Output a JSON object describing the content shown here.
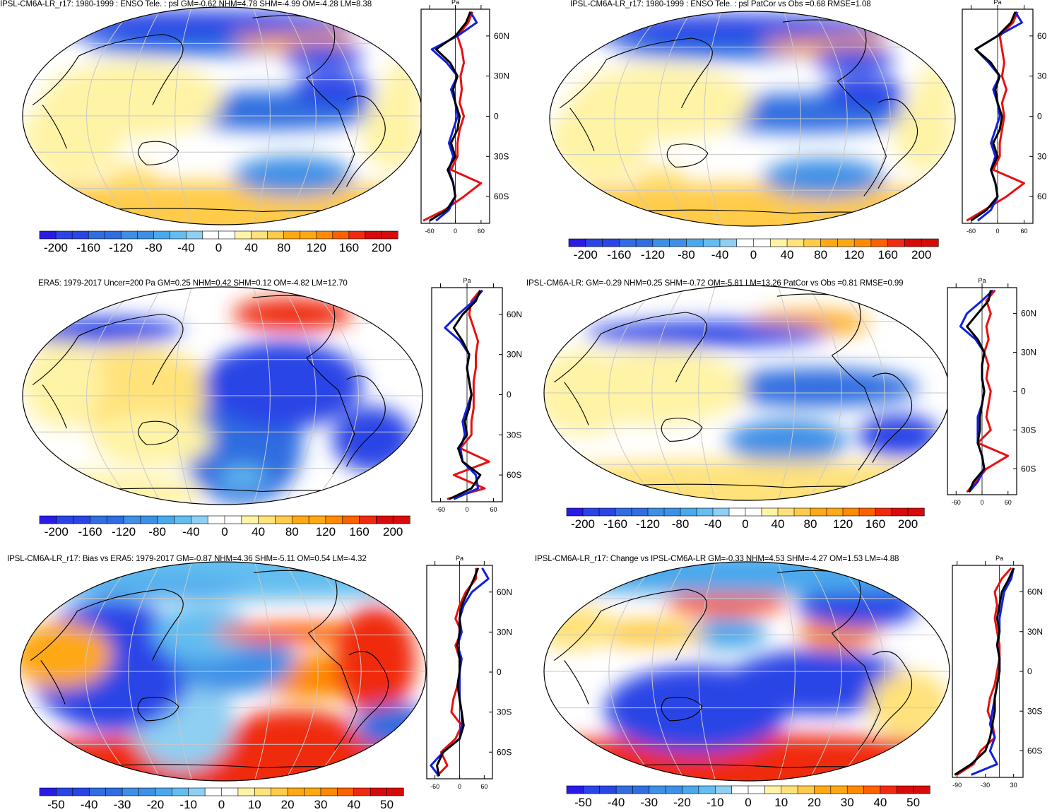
{
  "palette": {
    "neg": [
      "#2a1ae8",
      "#2a45e6",
      "#2f6de0",
      "#3e8fe6",
      "#4aa8ec",
      "#63bdf0",
      "#8ecff2"
    ],
    "zero": "#ffffff",
    "pos": [
      "#fff3a6",
      "#ffe27a",
      "#ffcb4a",
      "#ffa814",
      "#ff8a00",
      "#ff6000",
      "#f02a10",
      "#d80a0a"
    ],
    "land": "#000000",
    "grid": "#c8c8c8",
    "line_blue": "#1020e0",
    "line_red": "#e81010",
    "line_black": "#000000"
  },
  "chart_data": [
    {
      "id": "p1",
      "type": "heatmap",
      "title": "IPSL-CM6A-LR_r17: 1980-1999 : ENSO Tele. : psl GM=-0.62 NHM=4.78 SHM=-4.99 OM=-4.28 LM=8.38",
      "field": "ENSO teleconnection, sea level pressure",
      "colorbar_ticks": [
        "-200",
        "-160",
        "-120",
        "-80",
        "-40",
        "0",
        "40",
        "80",
        "120",
        "160",
        "200"
      ],
      "zonal_mean": {
        "unit": "Pa",
        "xticks": [
          "-60",
          "0",
          "60"
        ],
        "xrange": [
          -80,
          80
        ],
        "lat_labels": [
          "60N",
          "30N",
          "0",
          "30S",
          "60S"
        ],
        "lat": [
          78,
          70,
          60,
          50,
          40,
          30,
          20,
          10,
          0,
          -10,
          -20,
          -30,
          -40,
          -50,
          -60,
          -70,
          -78
        ],
        "model_black": [
          35,
          25,
          0,
          -45,
          -12,
          5,
          -5,
          0,
          10,
          5,
          -10,
          0,
          -18,
          -5,
          0,
          -20,
          -60
        ],
        "red": [
          40,
          30,
          5,
          15,
          20,
          12,
          15,
          10,
          20,
          10,
          5,
          5,
          -10,
          60,
          20,
          -25,
          -75
        ],
        "blue": [
          35,
          50,
          5,
          -55,
          -20,
          5,
          -10,
          0,
          5,
          -5,
          -15,
          -5,
          -15,
          -5,
          0,
          -15,
          -45
        ]
      }
    },
    {
      "id": "p2",
      "type": "heatmap",
      "title": "IPSL-CM6A-LR_r17: 1980-1999 : ENSO Tele. : psl PatCor vs Obs =0.68 RMSE=1.08",
      "field": "ENSO teleconnection, sea level pressure",
      "colorbar_ticks": [
        "-200",
        "-160",
        "-120",
        "-80",
        "-40",
        "0",
        "40",
        "80",
        "120",
        "160",
        "200"
      ],
      "zonal_mean": {
        "unit": "Pa",
        "xticks": [
          "-60",
          "0",
          "60"
        ],
        "xrange": [
          -80,
          80
        ],
        "lat_labels": [
          "60",
          "30",
          "0",
          "30",
          "60"
        ],
        "lat": [
          78,
          70,
          60,
          50,
          40,
          30,
          20,
          10,
          0,
          -10,
          -20,
          -30,
          -40,
          -50,
          -60,
          -70,
          -78
        ],
        "model_black": [
          40,
          30,
          0,
          -50,
          -15,
          5,
          -5,
          0,
          10,
          5,
          -10,
          0,
          -15,
          -5,
          0,
          -25,
          -60
        ],
        "red": [
          45,
          35,
          5,
          10,
          15,
          10,
          20,
          10,
          15,
          10,
          5,
          5,
          -10,
          60,
          20,
          -30,
          -70
        ],
        "blue": [
          40,
          55,
          0,
          -50,
          -20,
          5,
          -10,
          0,
          5,
          -5,
          -15,
          -5,
          -15,
          -5,
          0,
          -15,
          -45
        ]
      }
    },
    {
      "id": "p3",
      "type": "heatmap",
      "title": "ERA5: 1979-2017 Uncer=200 Pa GM=0.25 NHM=0.42 SHM=0.12 OM=-4.82 LM=12.70",
      "field": "ENSO teleconnection, sea level pressure (observations)",
      "colorbar_ticks": [
        "-200",
        "-160",
        "-120",
        "-80",
        "-40",
        "0",
        "40",
        "80",
        "120",
        "160",
        "200"
      ],
      "zonal_mean": {
        "unit": "Pa",
        "xticks": [
          "-60",
          "0",
          "60"
        ],
        "xrange": [
          -80,
          80
        ],
        "lat_labels": [
          "60N",
          "30N",
          "0",
          "30S",
          "60S"
        ],
        "lat": [
          78,
          70,
          60,
          50,
          40,
          30,
          20,
          10,
          0,
          -10,
          -20,
          -30,
          -40,
          -50,
          -60,
          -70,
          -78
        ],
        "model_black": [
          30,
          20,
          -10,
          -30,
          -10,
          5,
          0,
          5,
          10,
          5,
          -5,
          0,
          -20,
          -10,
          30,
          10,
          -40
        ],
        "red": [
          30,
          10,
          5,
          15,
          25,
          20,
          20,
          15,
          15,
          15,
          10,
          10,
          -15,
          50,
          -30,
          40,
          -45
        ],
        "blue": [
          35,
          15,
          -20,
          -50,
          -15,
          5,
          0,
          5,
          10,
          0,
          -10,
          -5,
          -15,
          -10,
          20,
          25,
          -30
        ]
      }
    },
    {
      "id": "p4",
      "type": "heatmap",
      "title": "IPSL-CM6A-LR: GM=-0.29 NHM=0.25 SHM=-0.72 OM=-5.81 LM=13.26 PatCor vs Obs =0.81 RMSE=0.99",
      "field": "ENSO teleconnection, sea level pressure (ensemble)",
      "colorbar_ticks": [
        "-200",
        "-160",
        "-120",
        "-80",
        "-40",
        "0",
        "40",
        "80",
        "120",
        "160",
        "200"
      ],
      "zonal_mean": {
        "unit": "Pa",
        "xticks": [
          "-60",
          "0",
          "60"
        ],
        "xrange": [
          -80,
          80
        ],
        "lat_labels": [
          "60N",
          "30N",
          "0",
          "30S",
          "60S"
        ],
        "lat": [
          78,
          70,
          60,
          50,
          40,
          30,
          20,
          10,
          0,
          -10,
          -20,
          -30,
          -40,
          -50,
          -60,
          -70,
          -78
        ],
        "model_black": [
          20,
          15,
          -10,
          -35,
          -10,
          5,
          0,
          0,
          5,
          0,
          -5,
          -5,
          -10,
          0,
          5,
          -20,
          -30
        ],
        "red": [
          30,
          10,
          20,
          10,
          15,
          5,
          15,
          10,
          20,
          15,
          10,
          20,
          -10,
          60,
          10,
          -15,
          -35
        ],
        "blue": [
          25,
          0,
          -35,
          -50,
          -15,
          5,
          0,
          0,
          5,
          0,
          -10,
          -10,
          -10,
          0,
          5,
          -10,
          -30
        ]
      }
    },
    {
      "id": "p5",
      "type": "heatmap",
      "title": "IPSL-CM6A-LR_r17: Bias vs ERA5: 1979-2017 GM=-0.87 NHM=4.36 SHM=-5.11 OM=0.54 LM=-4.32",
      "field": "Bias vs ERA5, sea level pressure",
      "colorbar_ticks": [
        "-50",
        "-40",
        "-30",
        "-20",
        "-10",
        "0",
        "10",
        "20",
        "30",
        "40",
        "50"
      ],
      "zonal_mean": {
        "unit": "Pa",
        "xticks": [
          "-60",
          "0",
          "60"
        ],
        "xrange": [
          -80,
          80
        ],
        "lat_labels": [
          "60N",
          "30N",
          "0",
          "30S",
          "60S"
        ],
        "lat": [
          78,
          70,
          60,
          50,
          40,
          30,
          20,
          10,
          0,
          -10,
          -20,
          -30,
          -40,
          -50,
          -60,
          -70,
          -78
        ],
        "model_black": [
          45,
          35,
          20,
          5,
          0,
          0,
          -5,
          0,
          0,
          -5,
          0,
          5,
          10,
          0,
          -40,
          -55,
          -50
        ],
        "red": [
          40,
          40,
          15,
          0,
          -10,
          5,
          -10,
          0,
          0,
          -5,
          -15,
          -20,
          5,
          -10,
          -45,
          -30,
          -55
        ],
        "blue": [
          55,
          70,
          30,
          10,
          0,
          5,
          -5,
          5,
          0,
          0,
          0,
          5,
          5,
          0,
          -40,
          -70,
          -50
        ]
      }
    },
    {
      "id": "p6",
      "type": "heatmap",
      "title": "IPSL-CM6A-LR_r17: Change vs IPSL-CM6A-LR GM=-0.33 NHM=4.53 SHM=-4.27 OM=1.53 LM=-4.88",
      "field": "Change vs IPSL-CM6A-LR, sea level pressure",
      "colorbar_ticks": [
        "-50",
        "-40",
        "-30",
        "-20",
        "-10",
        "0",
        "10",
        "20",
        "30",
        "40",
        "50"
      ],
      "zonal_mean": {
        "unit": "Pa",
        "xticks": [
          "-90",
          "-30",
          "30"
        ],
        "xrange": [
          -100,
          50
        ],
        "lat_labels": [
          "60N",
          "30N",
          "0",
          "30S",
          "60S"
        ],
        "lat": [
          78,
          70,
          60,
          50,
          40,
          30,
          20,
          10,
          0,
          -10,
          -20,
          -30,
          -40,
          -50,
          -60,
          -70,
          -78
        ],
        "model_black": [
          30,
          20,
          5,
          0,
          -5,
          0,
          -5,
          0,
          0,
          -5,
          -10,
          -10,
          -15,
          -20,
          -30,
          -60,
          -95
        ],
        "red": [
          25,
          5,
          -10,
          -5,
          -10,
          -5,
          0,
          0,
          -5,
          -10,
          -20,
          -25,
          -15,
          -10,
          -40,
          -55,
          -90
        ],
        "blue": [
          30,
          25,
          10,
          5,
          0,
          0,
          -5,
          0,
          0,
          -5,
          -10,
          -15,
          -20,
          -10,
          -20,
          -5,
          -60
        ]
      }
    }
  ]
}
